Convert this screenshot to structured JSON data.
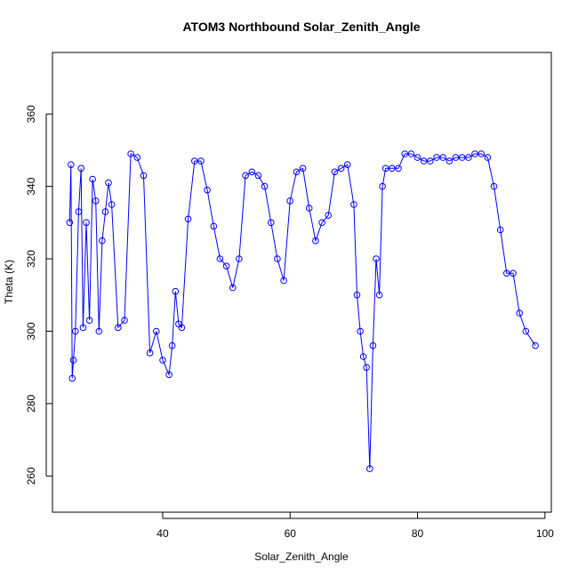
{
  "chart_data": {
    "type": "scatter",
    "title": "ATOM3 Northbound Solar_Zenith_Angle",
    "xlabel": "Solar_Zenith_Angle",
    "ylabel": "Theta (K)",
    "xlim": [
      22.7,
      101
    ],
    "ylim": [
      250,
      377
    ],
    "xticks": [
      40,
      60,
      80,
      100
    ],
    "yticks": [
      260,
      280,
      300,
      320,
      340,
      360
    ],
    "grid": false,
    "legend": "none",
    "point_color": "#0000FF",
    "series": [
      {
        "values": [
          [
            25.4,
            330
          ],
          [
            25.6,
            346
          ],
          [
            25.8,
            287
          ],
          [
            26,
            292
          ],
          [
            26.3,
            300
          ],
          [
            26.8,
            333
          ],
          [
            27.2,
            345
          ],
          [
            27.5,
            301
          ],
          [
            28,
            330
          ],
          [
            28.5,
            303
          ],
          [
            29,
            342
          ],
          [
            29.5,
            336
          ],
          [
            30,
            300
          ],
          [
            30.5,
            325
          ],
          [
            31,
            333
          ],
          [
            31.5,
            341
          ],
          [
            32,
            335
          ],
          [
            33,
            301
          ],
          [
            34,
            303
          ],
          [
            35,
            349
          ],
          [
            36,
            348
          ],
          [
            37,
            343
          ],
          [
            38,
            294
          ],
          [
            39,
            300
          ],
          [
            40,
            292
          ],
          [
            41,
            288
          ],
          [
            41.5,
            296
          ],
          [
            42,
            311
          ],
          [
            42.5,
            302
          ],
          [
            43,
            301
          ],
          [
            44,
            331
          ],
          [
            45,
            347
          ],
          [
            46,
            347
          ],
          [
            47,
            339
          ],
          [
            48,
            329
          ],
          [
            49,
            320
          ],
          [
            50,
            318
          ],
          [
            51,
            312
          ],
          [
            52,
            320
          ],
          [
            53,
            343
          ],
          [
            54,
            344
          ],
          [
            55,
            343
          ],
          [
            56,
            340
          ],
          [
            57,
            330
          ],
          [
            58,
            320
          ],
          [
            59,
            314
          ],
          [
            60,
            336
          ],
          [
            61,
            344
          ],
          [
            62,
            345
          ],
          [
            63,
            334
          ],
          [
            64,
            325
          ],
          [
            65,
            330
          ],
          [
            66,
            332
          ],
          [
            67,
            344
          ],
          [
            68,
            345
          ],
          [
            69,
            346
          ],
          [
            70,
            335
          ],
          [
            70.5,
            310
          ],
          [
            71,
            300
          ],
          [
            71.5,
            293
          ],
          [
            72,
            290
          ],
          [
            72.5,
            262
          ],
          [
            73,
            296
          ],
          [
            73.5,
            320
          ],
          [
            74,
            310
          ],
          [
            74.5,
            340
          ],
          [
            75,
            345
          ],
          [
            76,
            345
          ],
          [
            77,
            345
          ],
          [
            78,
            349
          ],
          [
            79,
            349
          ],
          [
            80,
            348
          ],
          [
            81,
            347
          ],
          [
            82,
            347
          ],
          [
            83,
            348
          ],
          [
            84,
            348
          ],
          [
            85,
            347
          ],
          [
            86,
            348
          ],
          [
            87,
            348
          ],
          [
            88,
            348
          ],
          [
            89,
            349
          ],
          [
            90,
            349
          ],
          [
            91,
            348
          ],
          [
            92,
            340
          ],
          [
            93,
            328
          ],
          [
            94,
            316
          ],
          [
            95,
            316
          ],
          [
            96,
            305
          ],
          [
            97,
            300
          ],
          [
            98.5,
            296
          ]
        ]
      }
    ]
  }
}
